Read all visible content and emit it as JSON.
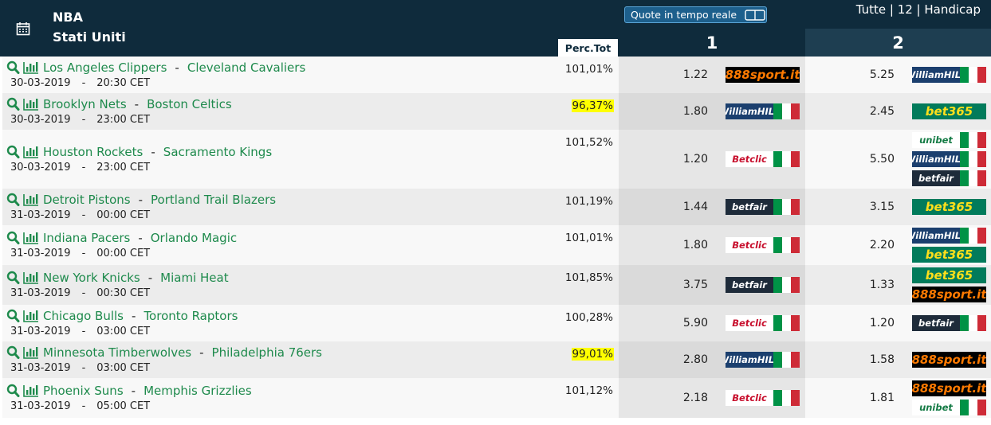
{
  "header": {
    "league": "NBA",
    "country": "Stati Uniti",
    "live_button": "Quote in tempo reale",
    "menu": "Tutte | 12 | Handicap",
    "perc_header": "Perc.Tot",
    "col1": "1",
    "col2": "2"
  },
  "separator": "-",
  "rows": [
    {
      "home": "Los Angeles Clippers",
      "away": "Cleveland Cavaliers",
      "date": "30-03-2019",
      "time": "20:30 CET",
      "perc": "101,01%",
      "highlight": false,
      "odds1": "1.22",
      "books1": [
        {
          "name": "888sport.it",
          "bg": "#000000",
          "fg": "#ff7a00",
          "flag": false
        }
      ],
      "odds2": "5.25",
      "books2": [
        {
          "name": "WilliamHILL",
          "bg": "#1b3f6e",
          "fg": "#ffffff",
          "flag": true
        }
      ]
    },
    {
      "home": "Brooklyn Nets",
      "away": "Boston Celtics",
      "date": "30-03-2019",
      "time": "23:00 CET",
      "perc": "96,37%",
      "highlight": true,
      "odds1": "1.80",
      "books1": [
        {
          "name": "WilliamHILL",
          "bg": "#1b3f6e",
          "fg": "#ffffff",
          "flag": true
        }
      ],
      "odds2": "2.45",
      "books2": [
        {
          "name": "bet365",
          "bg": "#027b5b",
          "fg": "#ffdf1b",
          "flag": false
        }
      ]
    },
    {
      "home": "Houston Rockets",
      "away": "Sacramento Kings",
      "date": "30-03-2019",
      "time": "23:00 CET",
      "perc": "101,52%",
      "highlight": false,
      "odds1": "1.20",
      "books1": [
        {
          "name": "Betclic",
          "bg": "#ffffff",
          "fg": "#c8102e",
          "flag": true
        }
      ],
      "odds2": "5.50",
      "books2": [
        {
          "name": "unibet",
          "bg": "#ffffff",
          "fg": "#147b45",
          "flag": true
        },
        {
          "name": "WilliamHILL",
          "bg": "#1b3f6e",
          "fg": "#ffffff",
          "flag": true
        },
        {
          "name": "betfair",
          "bg": "#1e2b3a",
          "fg": "#ffffff",
          "flag": true
        }
      ]
    },
    {
      "home": "Detroit Pistons",
      "away": "Portland Trail Blazers",
      "date": "31-03-2019",
      "time": "00:00 CET",
      "perc": "101,19%",
      "highlight": false,
      "odds1": "1.44",
      "books1": [
        {
          "name": "betfair",
          "bg": "#1e2b3a",
          "fg": "#ffffff",
          "flag": true
        }
      ],
      "odds2": "3.15",
      "books2": [
        {
          "name": "bet365",
          "bg": "#027b5b",
          "fg": "#ffdf1b",
          "flag": false
        }
      ]
    },
    {
      "home": "Indiana Pacers",
      "away": "Orlando Magic",
      "date": "31-03-2019",
      "time": "00:00 CET",
      "perc": "101,01%",
      "highlight": false,
      "odds1": "1.80",
      "books1": [
        {
          "name": "Betclic",
          "bg": "#ffffff",
          "fg": "#c8102e",
          "flag": true
        }
      ],
      "odds2": "2.20",
      "books2": [
        {
          "name": "WilliamHILL",
          "bg": "#1b3f6e",
          "fg": "#ffffff",
          "flag": true
        },
        {
          "name": "bet365",
          "bg": "#027b5b",
          "fg": "#ffdf1b",
          "flag": false
        }
      ]
    },
    {
      "home": "New York Knicks",
      "away": "Miami Heat",
      "date": "31-03-2019",
      "time": "00:30 CET",
      "perc": "101,85%",
      "highlight": false,
      "odds1": "3.75",
      "books1": [
        {
          "name": "betfair",
          "bg": "#1e2b3a",
          "fg": "#ffffff",
          "flag": true
        }
      ],
      "odds2": "1.33",
      "books2": [
        {
          "name": "bet365",
          "bg": "#027b5b",
          "fg": "#ffdf1b",
          "flag": false
        },
        {
          "name": "888sport.it",
          "bg": "#000000",
          "fg": "#ff7a00",
          "flag": false
        }
      ]
    },
    {
      "home": "Chicago Bulls",
      "away": "Toronto Raptors",
      "date": "31-03-2019",
      "time": "03:00 CET",
      "perc": "100,28%",
      "highlight": false,
      "odds1": "5.90",
      "books1": [
        {
          "name": "Betclic",
          "bg": "#ffffff",
          "fg": "#c8102e",
          "flag": true
        }
      ],
      "odds2": "1.20",
      "books2": [
        {
          "name": "betfair",
          "bg": "#1e2b3a",
          "fg": "#ffffff",
          "flag": true
        }
      ]
    },
    {
      "home": "Minnesota Timberwolves",
      "away": "Philadelphia 76ers",
      "date": "31-03-2019",
      "time": "03:00 CET",
      "perc": "99,01%",
      "highlight": true,
      "odds1": "2.80",
      "books1": [
        {
          "name": "WilliamHILL",
          "bg": "#1b3f6e",
          "fg": "#ffffff",
          "flag": true
        }
      ],
      "odds2": "1.58",
      "books2": [
        {
          "name": "888sport.it",
          "bg": "#000000",
          "fg": "#ff7a00",
          "flag": false
        }
      ]
    },
    {
      "home": "Phoenix Suns",
      "away": "Memphis Grizzlies",
      "date": "31-03-2019",
      "time": "05:00 CET",
      "perc": "101,12%",
      "highlight": false,
      "odds1": "2.18",
      "books1": [
        {
          "name": "Betclic",
          "bg": "#ffffff",
          "fg": "#c8102e",
          "flag": true
        }
      ],
      "odds2": "1.81",
      "books2": [
        {
          "name": "888sport.it",
          "bg": "#000000",
          "fg": "#ff7a00",
          "flag": false
        },
        {
          "name": "unibet",
          "bg": "#ffffff",
          "fg": "#147b45",
          "flag": true
        }
      ]
    }
  ]
}
